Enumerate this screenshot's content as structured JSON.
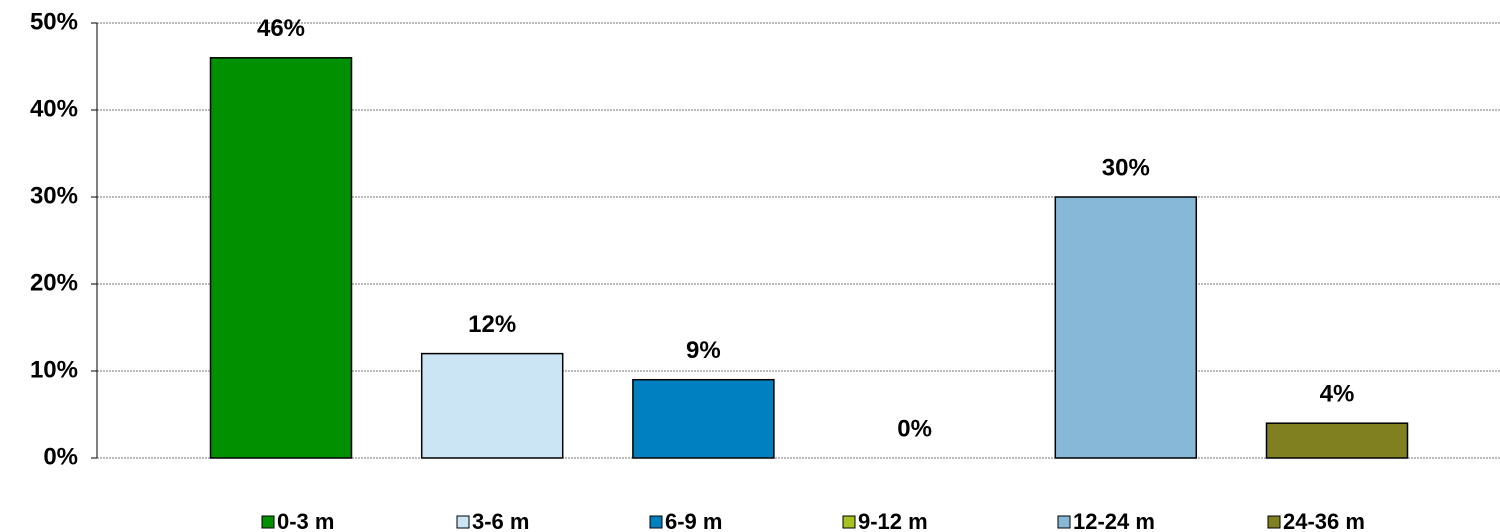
{
  "chart_data": {
    "type": "bar",
    "series": [
      {
        "name": "0-3 m",
        "color": "#009000",
        "values": [
          46
        ],
        "value_labels": [
          "46%"
        ]
      },
      {
        "name": "3-6 m",
        "color": "#cce5f5",
        "values": [
          12
        ],
        "value_labels": [
          "12%"
        ]
      },
      {
        "name": "6-9 m",
        "color": "#0080c0",
        "values": [
          9
        ],
        "value_labels": [
          "9%"
        ]
      },
      {
        "name": "9-12 m",
        "color": "#a8c020",
        "values": [
          0
        ],
        "value_labels": [
          "0%"
        ]
      },
      {
        "name": "12-24 m",
        "color": "#88b8d8",
        "values": [
          30
        ],
        "value_labels": [
          "30%"
        ]
      },
      {
        "name": "24-36 m",
        "color": "#808020",
        "values": [
          4
        ],
        "value_labels": [
          "4%"
        ]
      }
    ],
    "ylim": [
      0,
      50
    ],
    "yticks": [
      {
        "value": 0,
        "label": "0%"
      },
      {
        "value": 10,
        "label": "10%"
      },
      {
        "value": 20,
        "label": "20%"
      },
      {
        "value": 30,
        "label": "30%"
      },
      {
        "value": 40,
        "label": "40%"
      },
      {
        "value": 50,
        "label": "50%"
      }
    ],
    "grid": true,
    "legend": "bottom"
  }
}
